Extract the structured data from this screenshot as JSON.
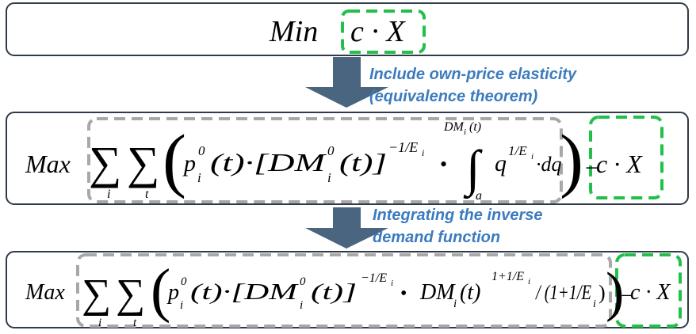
{
  "box1": {
    "tokens": [
      "Min",
      "c · X"
    ]
  },
  "arrow1": {
    "label": [
      "Include own-price elasticity",
      "(equivalence theorem)"
    ]
  },
  "box2": {
    "tokens": [
      "Max",
      "∑",
      "i",
      "∑",
      "t",
      "(",
      "p",
      "0",
      "i",
      "(t)·[DM",
      "0",
      "i",
      "(t)]",
      "−1/E",
      "i",
      "•",
      "∫",
      "DM",
      "i",
      "(t)",
      "a",
      "q",
      "1/E",
      "i",
      "·dq",
      ")",
      "−",
      "c · X"
    ]
  },
  "arrow2": {
    "label": [
      "Integrating the inverse",
      "demand function"
    ]
  },
  "box3": {
    "tokens": [
      "Max",
      "∑",
      "i",
      "∑",
      "t",
      "(",
      "p",
      "0",
      "i",
      "(t)·[DM",
      "0",
      "i",
      "(t)]",
      "−1/E",
      "i",
      "•",
      "DM",
      "i",
      "(t)",
      "1+1/E",
      "i",
      "/ (1+1/E",
      "i",
      ")",
      ")",
      "−",
      "c · X"
    ]
  }
}
